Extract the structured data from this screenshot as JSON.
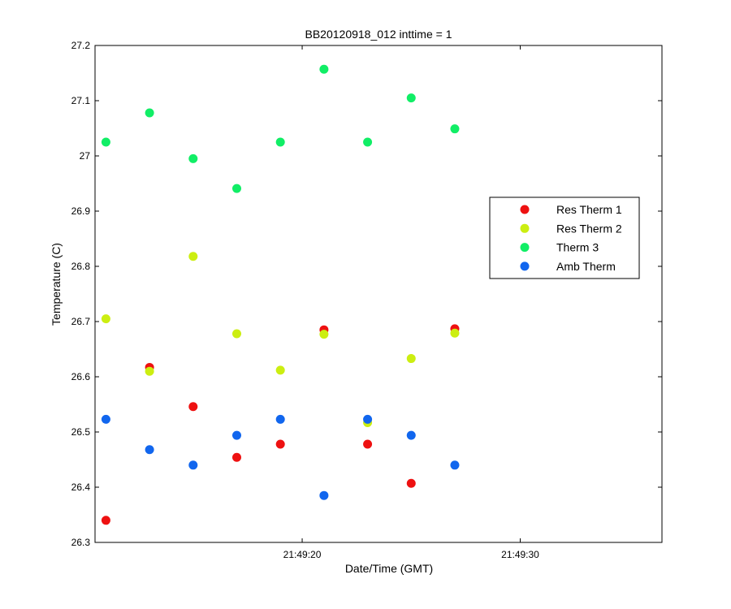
{
  "chart_data": {
    "type": "scatter",
    "title": "BB20120918_012 inttime = 1",
    "xlabel": "Date/Time (GMT)",
    "ylabel": "Temperature (C)",
    "xlim": [
      "21:49:10.5",
      "21:49:36.5"
    ],
    "ylim": [
      26.3,
      27.2
    ],
    "x_ticks": [
      "21:49:20",
      "21:49:30"
    ],
    "y_ticks": [
      "26.3",
      "26.4",
      "26.5",
      "26.6",
      "26.7",
      "26.8",
      "26.9",
      "27",
      "27.1",
      "27.2"
    ],
    "grid": false,
    "legend_position": "right",
    "x": [
      "21:49:11",
      "21:49:13",
      "21:49:15",
      "21:49:17",
      "21:49:19",
      "21:49:21",
      "21:49:23",
      "21:49:25",
      "21:49:27"
    ],
    "series": [
      {
        "name": "Res Therm 1",
        "color": "#ee1111",
        "values": [
          26.34,
          26.617,
          26.546,
          26.454,
          26.478,
          26.685,
          26.478,
          26.407,
          26.687
        ]
      },
      {
        "name": "Res Therm 2",
        "color": "#ccee11",
        "values": [
          26.705,
          26.61,
          26.818,
          26.678,
          26.612,
          26.677,
          26.517,
          26.633,
          26.679
        ]
      },
      {
        "name": "Therm 3",
        "color": "#11ee66",
        "values": [
          27.025,
          27.078,
          26.995,
          26.941,
          27.025,
          27.157,
          27.025,
          27.105,
          27.049
        ]
      },
      {
        "name": "Amb Therm",
        "color": "#1166ee",
        "values": [
          26.523,
          26.468,
          26.44,
          26.494,
          26.523,
          26.385,
          26.523,
          26.494,
          26.44
        ]
      }
    ]
  }
}
